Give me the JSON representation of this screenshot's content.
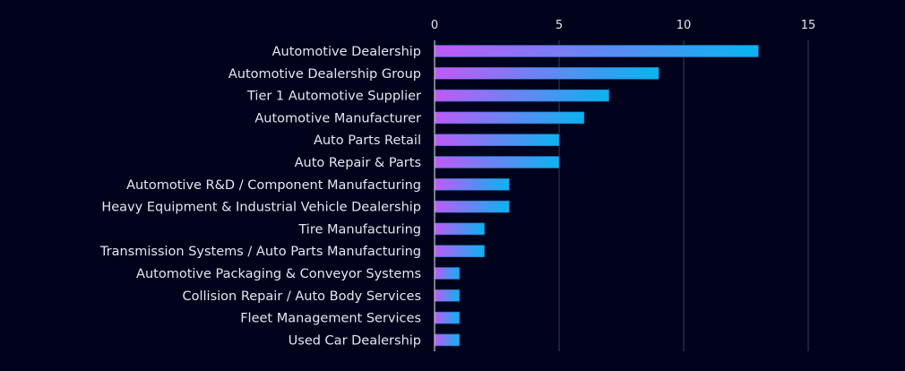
{
  "chart_data": {
    "type": "bar",
    "orientation": "horizontal",
    "title": "",
    "xlabel": "",
    "ylabel": "",
    "xlim": [
      0,
      18
    ],
    "xticks": [
      0,
      5,
      10,
      15
    ],
    "xtick_labels": [
      "0",
      "5",
      "10",
      "15"
    ],
    "grid": true,
    "categories": [
      "Automotive Dealership",
      "Automotive Dealership Group",
      "Tier 1 Automotive Supplier",
      "Automotive Manufacturer",
      "Auto Parts Retail",
      "Auto Repair & Parts",
      "Automotive R&D / Component Manufacturing",
      "Heavy Equipment & Industrial Vehicle Dealership",
      "Tire Manufacturing",
      "Transmission Systems / Auto Parts Manufacturing",
      "Automotive Packaging & Conveyor Systems",
      "Collision Repair / Auto Body Services",
      "Fleet Management Services",
      "Used Car Dealership"
    ],
    "values": [
      13,
      9,
      7,
      6,
      5,
      5,
      3,
      3,
      2,
      2,
      1,
      1,
      1,
      1
    ],
    "colors": {
      "gradient_start": "#c05af8",
      "gradient_end": "#08b4ef",
      "background": "#01031c",
      "grid": "#3a3c58",
      "axis": "#c8c8d0",
      "text": "#e6e6ee"
    }
  }
}
